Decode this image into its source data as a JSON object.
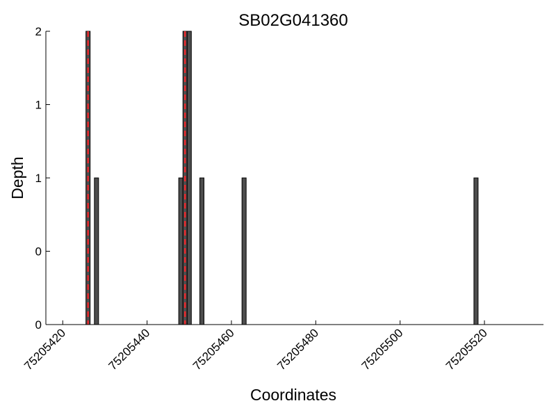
{
  "chart_data": {
    "type": "bar",
    "title": "SB02G041360",
    "xlabel": "Coordinates",
    "ylabel": "Depth",
    "x_ticks": [
      75205420,
      75205440,
      75205460,
      75205480,
      75205500,
      75205520
    ],
    "y_tick_values": [
      0,
      0.5,
      1,
      1.5,
      2
    ],
    "y_tick_labels": [
      "0",
      "0",
      "1",
      "1",
      "2"
    ],
    "xlim": [
      75205416,
      75205534
    ],
    "ylim": [
      0,
      2
    ],
    "grid": false,
    "bars": [
      {
        "x": 75205426,
        "value": 2
      },
      {
        "x": 75205428,
        "value": 1
      },
      {
        "x": 75205448,
        "value": 1
      },
      {
        "x": 75205449,
        "value": 2
      },
      {
        "x": 75205450,
        "value": 2
      },
      {
        "x": 75205453,
        "value": 1
      },
      {
        "x": 75205463,
        "value": 1
      },
      {
        "x": 75205518,
        "value": 1
      }
    ],
    "markers": [
      75205426,
      75205449
    ],
    "colors": {
      "bar_fill": "#4d4d4d",
      "bar_stroke": "#000000",
      "marker": "#e8262a",
      "axis": "#000000"
    }
  }
}
